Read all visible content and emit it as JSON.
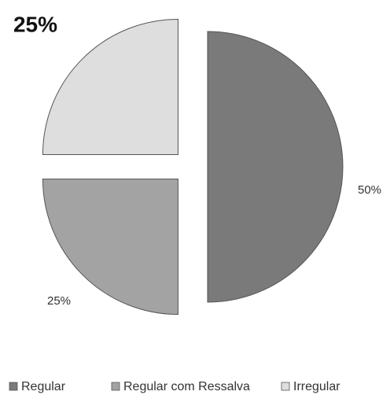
{
  "chart_data": {
    "type": "pie",
    "categories": [
      "Regular",
      "Regular com Ressalva",
      "Irregular"
    ],
    "values": [
      50,
      25,
      25
    ],
    "value_labels": [
      "50%",
      "25%",
      "25%"
    ],
    "colors": [
      "#7a7a7a",
      "#a3a3a3",
      "#dedede"
    ],
    "legend": "bottom"
  }
}
